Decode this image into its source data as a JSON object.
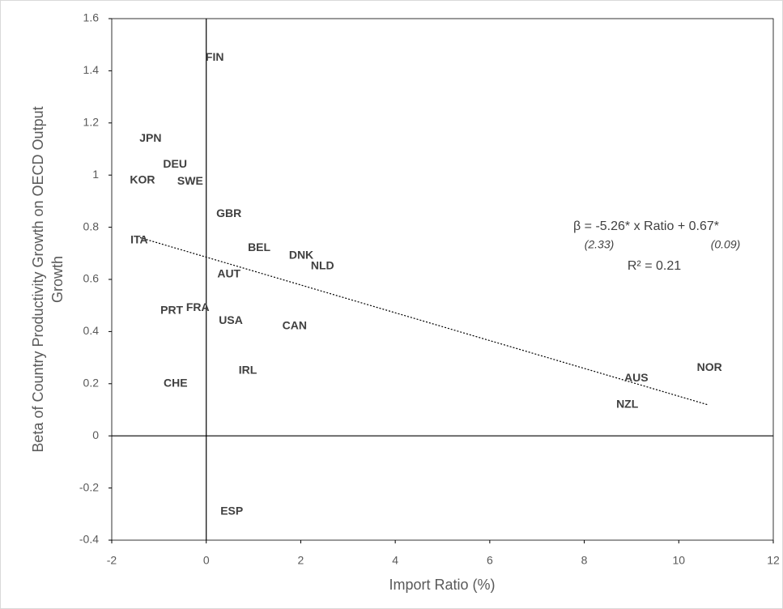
{
  "chart_data": {
    "type": "scatter",
    "xlabel": "Import Ratio (%)",
    "ylabel": [
      "Beta of Country Productivity Growth on OECD Output",
      "Growth"
    ],
    "categories": [
      "FIN",
      "JPN",
      "DEU",
      "KOR",
      "SWE",
      "GBR",
      "ITA",
      "BEL",
      "DNK",
      "NLD",
      "AUT",
      "PRT",
      "FRA",
      "USA",
      "CAN",
      "IRL",
      "CHE",
      "ESP",
      "AUS",
      "NOR",
      "NZL"
    ],
    "x": [
      0.18,
      -1.18,
      -0.66,
      -1.35,
      -0.34,
      0.48,
      -1.42,
      1.12,
      2.01,
      2.46,
      0.48,
      -0.73,
      -0.18,
      0.52,
      1.87,
      0.88,
      -0.65,
      0.54,
      9.1,
      10.65,
      8.91
    ],
    "values": [
      1.45,
      1.14,
      1.04,
      0.98,
      0.975,
      0.85,
      0.75,
      0.72,
      0.69,
      0.65,
      0.62,
      0.48,
      0.49,
      0.44,
      0.42,
      0.25,
      0.2,
      -0.29,
      0.22,
      0.26,
      0.12
    ],
    "trendline": {
      "x": [
        -1.4,
        10.6
      ],
      "values": [
        0.76,
        0.12
      ]
    },
    "annotations": [
      "β = -5.26*  x  Ratio + 0.67*",
      "(2.33)",
      "(0.09)",
      "R² = 0.21"
    ],
    "xlim": [
      -2,
      12
    ],
    "xticks": [
      -2,
      0,
      2,
      4,
      6,
      8,
      10,
      12
    ],
    "ylim": [
      -0.4,
      1.6
    ],
    "yticks": [
      -0.4,
      -0.2,
      0,
      0.2,
      0.4,
      0.6,
      0.8,
      1,
      1.2,
      1.4,
      1.6
    ]
  }
}
